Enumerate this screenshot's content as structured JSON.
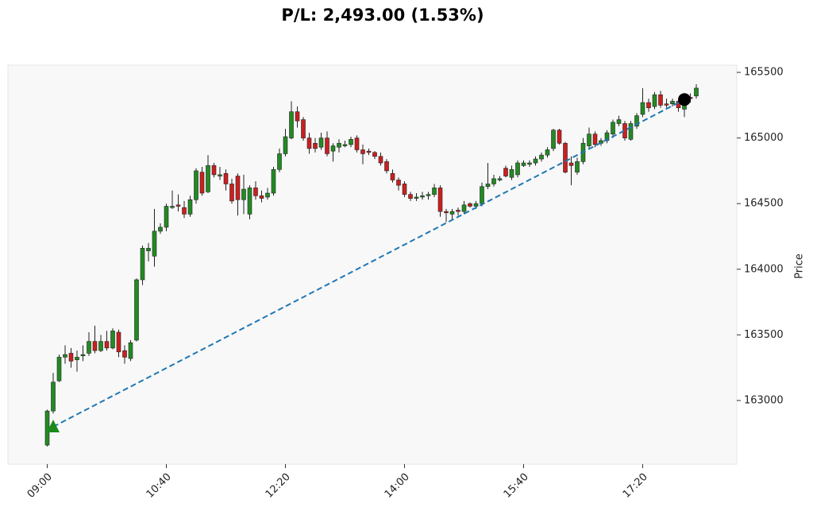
{
  "chart_data": {
    "type": "candlestick",
    "title": "P/L: 2,493.00 (1.53%)",
    "y_label": "Price",
    "x": [
      "09:00",
      "09:05",
      "09:10",
      "09:15",
      "09:20",
      "09:25",
      "09:30",
      "09:35",
      "09:40",
      "09:45",
      "09:50",
      "09:55",
      "10:00",
      "10:05",
      "10:10",
      "10:15",
      "10:20",
      "10:25",
      "10:30",
      "10:35",
      "10:40",
      "10:45",
      "10:50",
      "10:55",
      "11:00",
      "11:05",
      "11:10",
      "11:15",
      "11:20",
      "11:25",
      "11:30",
      "11:35",
      "11:40",
      "11:45",
      "11:50",
      "11:55",
      "12:00",
      "12:05",
      "12:10",
      "12:15",
      "12:20",
      "12:25",
      "12:30",
      "12:35",
      "12:40",
      "12:45",
      "12:50",
      "12:55",
      "13:00",
      "13:05",
      "13:10",
      "13:15",
      "13:20",
      "13:25",
      "13:30",
      "13:35",
      "13:40",
      "13:45",
      "13:50",
      "13:55",
      "14:00",
      "14:05",
      "14:10",
      "14:15",
      "14:20",
      "14:25",
      "14:30",
      "14:35",
      "14:40",
      "14:45",
      "14:50",
      "14:55",
      "15:00",
      "15:05",
      "15:10",
      "15:15",
      "15:20",
      "15:25",
      "15:30",
      "15:35",
      "15:40",
      "15:45",
      "15:50",
      "15:55",
      "16:00",
      "16:05",
      "16:10",
      "16:15",
      "16:20",
      "16:25",
      "16:30",
      "16:35",
      "16:40",
      "16:45",
      "16:50",
      "16:55",
      "17:00",
      "17:05",
      "17:10",
      "17:15",
      "17:20",
      "17:25",
      "17:30",
      "17:35",
      "17:40",
      "17:45",
      "17:50",
      "17:55",
      "18:00",
      "18:05"
    ],
    "open": [
      162660,
      162920,
      163150,
      163330,
      163360,
      163310,
      163340,
      163360,
      163450,
      163380,
      163450,
      163400,
      163520,
      163380,
      163320,
      163460,
      163920,
      164140,
      164100,
      164290,
      164320,
      164470,
      164490,
      164470,
      164420,
      164530,
      164740,
      164590,
      164790,
      164710,
      164730,
      164650,
      164710,
      164530,
      164420,
      164620,
      164560,
      164550,
      164580,
      164760,
      164880,
      165000,
      165200,
      165140,
      165000,
      164960,
      164930,
      165000,
      164900,
      164930,
      164940,
      164950,
      165000,
      164910,
      164900,
      164890,
      164860,
      164820,
      164730,
      164680,
      164650,
      164570,
      164540,
      164550,
      164560,
      164570,
      164620,
      164440,
      164420,
      164450,
      164440,
      164500,
      164480,
      164500,
      164630,
      164650,
      164680,
      164770,
      164700,
      164720,
      164790,
      164800,
      164810,
      164840,
      164870,
      164920,
      165060,
      164960,
      164810,
      164740,
      164820,
      164940,
      165030,
      164960,
      164980,
      165030,
      165110,
      165110,
      164990,
      165090,
      165180,
      165270,
      165240,
      165330,
      165260,
      165260,
      165280,
      165220,
      165310,
      165320
    ],
    "high": [
      162930,
      163210,
      163350,
      163420,
      163400,
      163380,
      163420,
      163520,
      163570,
      163500,
      163530,
      163550,
      163540,
      163420,
      163460,
      163930,
      164180,
      164200,
      164460,
      164350,
      164500,
      164600,
      164570,
      164520,
      164560,
      164770,
      164780,
      164870,
      164810,
      164780,
      164760,
      164690,
      164730,
      164720,
      164640,
      164670,
      164600,
      164620,
      164780,
      164920,
      165070,
      165280,
      165240,
      165160,
      165040,
      165000,
      165040,
      165050,
      164960,
      164990,
      164980,
      165010,
      165020,
      164950,
      164920,
      164900,
      164890,
      164840,
      164760,
      164700,
      164670,
      164590,
      164580,
      164590,
      164590,
      164650,
      164640,
      164460,
      164460,
      164470,
      164520,
      164510,
      164520,
      164660,
      164810,
      164720,
      164710,
      164790,
      164790,
      164830,
      164830,
      164830,
      164860,
      164890,
      164930,
      165070,
      165070,
      164970,
      164860,
      164850,
      165000,
      165080,
      165050,
      165000,
      165060,
      165140,
      165170,
      165130,
      165130,
      165190,
      165380,
      165300,
      165350,
      165360,
      165300,
      165300,
      165300,
      165340,
      165340,
      165410
    ],
    "low": [
      162650,
      162900,
      163140,
      163280,
      163250,
      163220,
      163300,
      163340,
      163360,
      163370,
      163380,
      163390,
      163330,
      163280,
      163300,
      163450,
      163880,
      164060,
      164020,
      164270,
      164290,
      164460,
      164440,
      164390,
      164400,
      164500,
      164560,
      164580,
      164700,
      164680,
      164600,
      164500,
      164410,
      164420,
      164380,
      164530,
      164510,
      164530,
      164560,
      164740,
      164860,
      164990,
      165080,
      164980,
      164880,
      164890,
      164910,
      164860,
      164820,
      164890,
      164930,
      164930,
      164890,
      164800,
      164870,
      164840,
      164790,
      164730,
      164660,
      164600,
      164550,
      164520,
      164520,
      164530,
      164530,
      164550,
      164400,
      164360,
      164380,
      164410,
      164420,
      164470,
      164460,
      164480,
      164610,
      164630,
      164670,
      164700,
      164680,
      164700,
      164780,
      164780,
      164790,
      164820,
      164850,
      164900,
      164950,
      164730,
      164640,
      164720,
      164800,
      164920,
      164930,
      164940,
      164960,
      165000,
      165090,
      164980,
      164980,
      165070,
      165160,
      165200,
      165220,
      165230,
      165230,
      165240,
      165200,
      165160,
      165270,
      165300
    ],
    "close": [
      162920,
      163140,
      163330,
      163350,
      163300,
      163330,
      163350,
      163450,
      163380,
      163450,
      163400,
      163530,
      163370,
      163330,
      163440,
      163920,
      164160,
      164160,
      164290,
      164320,
      164480,
      164480,
      164480,
      164420,
      164530,
      164750,
      164580,
      164790,
      164720,
      164720,
      164650,
      164520,
      164530,
      164610,
      164620,
      164560,
      164540,
      164580,
      164760,
      164880,
      165010,
      165200,
      165130,
      165000,
      164920,
      164920,
      165000,
      164880,
      164940,
      164960,
      164950,
      164990,
      164910,
      164880,
      164890,
      164860,
      164810,
      164750,
      164680,
      164640,
      164570,
      164540,
      164550,
      164560,
      164570,
      164620,
      164440,
      164430,
      164440,
      164440,
      164490,
      164480,
      164500,
      164630,
      164650,
      164690,
      164690,
      164710,
      164760,
      164810,
      164810,
      164810,
      164840,
      164870,
      164910,
      165060,
      164960,
      164740,
      164790,
      164820,
      164960,
      165030,
      164950,
      164980,
      165040,
      165120,
      165140,
      165000,
      165110,
      165170,
      165270,
      165230,
      165330,
      165250,
      165250,
      165280,
      165230,
      165300,
      165300,
      165380
    ],
    "up_color": "#228b22",
    "down_color": "#cc1f1f",
    "trade": {
      "entry": {
        "x": "09:05",
        "price": 162800,
        "color": "#1a8a1a"
      },
      "exit": {
        "x": "17:55",
        "price": 165293,
        "color": "#000000"
      },
      "line_color": "#1f77b4"
    },
    "xlim": [
      "08:27",
      "18:39"
    ],
    "ylim": [
      162515,
      165555
    ],
    "xticks": [
      "09:00",
      "10:40",
      "12:20",
      "14:00",
      "15:40",
      "17:20"
    ],
    "yticks": [
      163000,
      163500,
      164000,
      164500,
      165000,
      165500
    ]
  }
}
